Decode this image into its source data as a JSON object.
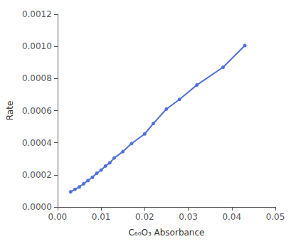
{
  "chart_data": {
    "type": "line",
    "x": [
      0.003,
      0.004,
      0.005,
      0.006,
      0.007,
      0.008,
      0.009,
      0.01,
      0.011,
      0.012,
      0.013,
      0.015,
      0.017,
      0.02,
      0.022,
      0.025,
      0.028,
      0.032,
      0.038,
      0.043
    ],
    "values": [
      9.5e-05,
      0.00011,
      0.000125,
      0.000145,
      0.000165,
      0.000185,
      0.00021,
      0.00023,
      0.000255,
      0.000275,
      0.000305,
      0.000345,
      0.000395,
      0.000455,
      0.00052,
      0.00061,
      0.00067,
      0.00076,
      0.00087,
      0.001005
    ],
    "xlabel": "C₆₀O₃ Absorbance",
    "ylabel": "Rate",
    "xlim": [
      0.0,
      0.05
    ],
    "ylim": [
      0.0,
      0.0012
    ],
    "xticks": [
      {
        "value": 0.0,
        "label": "0.00"
      },
      {
        "value": 0.01,
        "label": "0.01"
      },
      {
        "value": 0.02,
        "label": "0.02"
      },
      {
        "value": 0.03,
        "label": "0.03"
      },
      {
        "value": 0.04,
        "label": "0.04"
      },
      {
        "value": 0.05,
        "label": "0.05"
      }
    ],
    "yticks": [
      {
        "value": 0.0,
        "label": "0.0000"
      },
      {
        "value": 0.0002,
        "label": "0.0002"
      },
      {
        "value": 0.0004,
        "label": "0.0004"
      },
      {
        "value": 0.0006,
        "label": "0.0006"
      },
      {
        "value": 0.0008,
        "label": "0.0008"
      },
      {
        "value": 0.001,
        "label": "0.0010"
      },
      {
        "value": 0.0012,
        "label": "0.0012"
      }
    ],
    "grid": false,
    "marker": "circle"
  }
}
